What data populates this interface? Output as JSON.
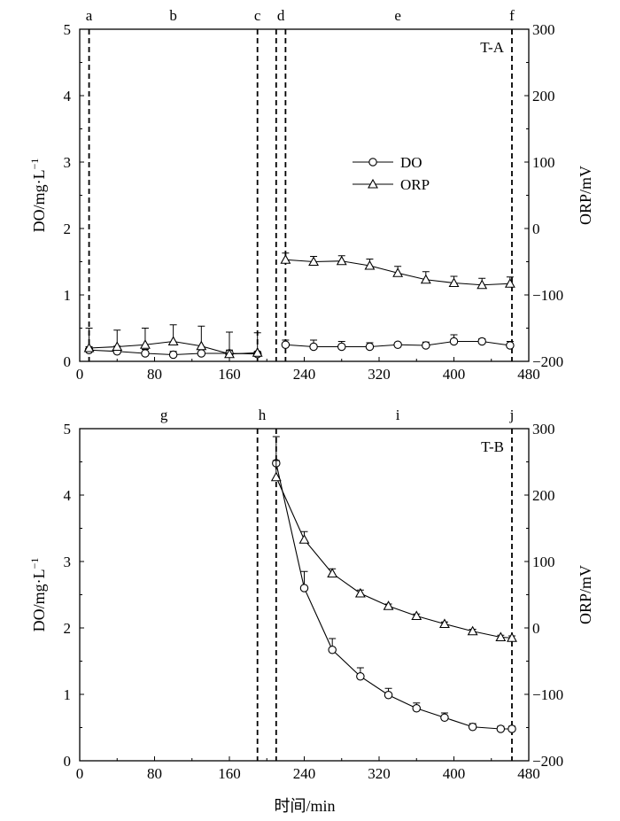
{
  "chart_data": [
    {
      "type": "line",
      "panel_label": "T-A",
      "x_ticks": [
        0,
        80,
        160,
        240,
        320,
        400,
        480
      ],
      "xlim": [
        0,
        480
      ],
      "xlabel": "",
      "ylabel_left": "DO/mg·L",
      "ylabel_left_sup": "−1",
      "ylabel_right": "ORP/mV",
      "ylim_left": [
        0,
        5
      ],
      "ylim_right": [
        -200,
        300
      ],
      "y_ticks_left": [
        0,
        1,
        2,
        3,
        4,
        5
      ],
      "y_ticks_right": [
        -200,
        -100,
        0,
        100,
        200,
        300
      ],
      "phase_labels": [
        {
          "label": "a",
          "x": 10
        },
        {
          "label": "b",
          "x": 100
        },
        {
          "label": "c",
          "x": 190
        },
        {
          "label": "d",
          "x": 215
        },
        {
          "label": "e",
          "x": 340
        },
        {
          "label": "f",
          "x": 462
        }
      ],
      "phase_lines": [
        10,
        190,
        210,
        220,
        462
      ],
      "legend": {
        "position": "center-right",
        "entries": [
          "DO",
          "ORP"
        ]
      },
      "series": [
        {
          "name": "DO",
          "axis": "left",
          "marker": "circle",
          "points": [
            {
              "x": 10,
              "y": 0.17,
              "err": 0.05
            },
            {
              "x": 40,
              "y": 0.15,
              "err": 0.08
            },
            {
              "x": 70,
              "y": 0.12,
              "err": 0.06
            },
            {
              "x": 100,
              "y": 0.1,
              "err": 0.05
            },
            {
              "x": 130,
              "y": 0.12,
              "err": 0.06
            },
            {
              "x": 160,
              "y": 0.12,
              "err": 0.05
            },
            {
              "x": 190,
              "y": 0.11,
              "err": 0.04
            }
          ]
        },
        {
          "name": "DO",
          "axis": "left",
          "marker": "circle",
          "points": [
            {
              "x": 220,
              "y": 0.25,
              "err": 0.07
            },
            {
              "x": 250,
              "y": 0.22,
              "err": 0.1
            },
            {
              "x": 280,
              "y": 0.22,
              "err": 0.08
            },
            {
              "x": 310,
              "y": 0.22,
              "err": 0.06
            },
            {
              "x": 340,
              "y": 0.25,
              "err": 0.03
            },
            {
              "x": 370,
              "y": 0.24,
              "err": 0.05
            },
            {
              "x": 400,
              "y": 0.3,
              "err": 0.1
            },
            {
              "x": 430,
              "y": 0.3,
              "err": 0.04
            },
            {
              "x": 460,
              "y": 0.24,
              "err": 0.06
            }
          ]
        },
        {
          "name": "ORP",
          "axis": "right",
          "marker": "triangle",
          "points": [
            {
              "x": 10,
              "y": -180,
              "err": 30
            },
            {
              "x": 40,
              "y": -178,
              "err": 25
            },
            {
              "x": 70,
              "y": -175,
              "err": 25
            },
            {
              "x": 100,
              "y": -170,
              "err": 25
            },
            {
              "x": 130,
              "y": -177,
              "err": 30
            },
            {
              "x": 160,
              "y": -189,
              "err": 33
            },
            {
              "x": 190,
              "y": -187,
              "err": 30
            }
          ]
        },
        {
          "name": "ORP",
          "axis": "right",
          "marker": "triangle",
          "points": [
            {
              "x": 220,
              "y": -47,
              "err": 10
            },
            {
              "x": 250,
              "y": -50,
              "err": 8
            },
            {
              "x": 280,
              "y": -49,
              "err": 8
            },
            {
              "x": 310,
              "y": -56,
              "err": 10
            },
            {
              "x": 340,
              "y": -67,
              "err": 10
            },
            {
              "x": 370,
              "y": -77,
              "err": 12
            },
            {
              "x": 400,
              "y": -82,
              "err": 10
            },
            {
              "x": 430,
              "y": -85,
              "err": 10
            },
            {
              "x": 460,
              "y": -83,
              "err": 10
            }
          ]
        }
      ]
    },
    {
      "type": "line",
      "panel_label": "T-B",
      "x_ticks": [
        0,
        80,
        160,
        240,
        320,
        400,
        480
      ],
      "xlim": [
        0,
        480
      ],
      "xlabel": "时间/min",
      "ylabel_left": "DO/mg·L",
      "ylabel_left_sup": "−1",
      "ylabel_right": "ORP/mV",
      "ylim_left": [
        0,
        5
      ],
      "ylim_right": [
        -200,
        300
      ],
      "y_ticks_left": [
        0,
        1,
        2,
        3,
        4,
        5
      ],
      "y_ticks_right": [
        -200,
        -100,
        0,
        100,
        200,
        300
      ],
      "phase_labels": [
        {
          "label": "g",
          "x": 90
        },
        {
          "label": "h",
          "x": 195
        },
        {
          "label": "i",
          "x": 340
        },
        {
          "label": "j",
          "x": 462
        }
      ],
      "phase_lines": [
        190,
        210,
        462
      ],
      "series": [
        {
          "name": "DO",
          "axis": "left",
          "marker": "circle",
          "points": [
            {
              "x": 210,
              "y": 4.48,
              "err": 0.4
            },
            {
              "x": 240,
              "y": 2.6,
              "err": 0.25
            },
            {
              "x": 270,
              "y": 1.67,
              "err": 0.17
            },
            {
              "x": 300,
              "y": 1.27,
              "err": 0.13
            },
            {
              "x": 330,
              "y": 0.99,
              "err": 0.1
            },
            {
              "x": 360,
              "y": 0.79,
              "err": 0.08
            },
            {
              "x": 390,
              "y": 0.65,
              "err": 0.07
            },
            {
              "x": 420,
              "y": 0.51,
              "err": 0.05
            },
            {
              "x": 450,
              "y": 0.48,
              "err": 0.04
            },
            {
              "x": 462,
              "y": 0.48,
              "err": 0.04
            }
          ]
        },
        {
          "name": "ORP",
          "axis": "right",
          "marker": "triangle",
          "points": [
            {
              "x": 210,
              "y": 227,
              "err": 25
            },
            {
              "x": 240,
              "y": 133,
              "err": 12
            },
            {
              "x": 270,
              "y": 82,
              "err": 7
            },
            {
              "x": 300,
              "y": 52,
              "err": 5
            },
            {
              "x": 330,
              "y": 33,
              "err": 3
            },
            {
              "x": 360,
              "y": 18,
              "err": 3
            },
            {
              "x": 390,
              "y": 6,
              "err": 3
            },
            {
              "x": 420,
              "y": -5,
              "err": 3
            },
            {
              "x": 450,
              "y": -14,
              "err": 3
            },
            {
              "x": 462,
              "y": -15,
              "err": 3
            }
          ]
        }
      ]
    }
  ]
}
